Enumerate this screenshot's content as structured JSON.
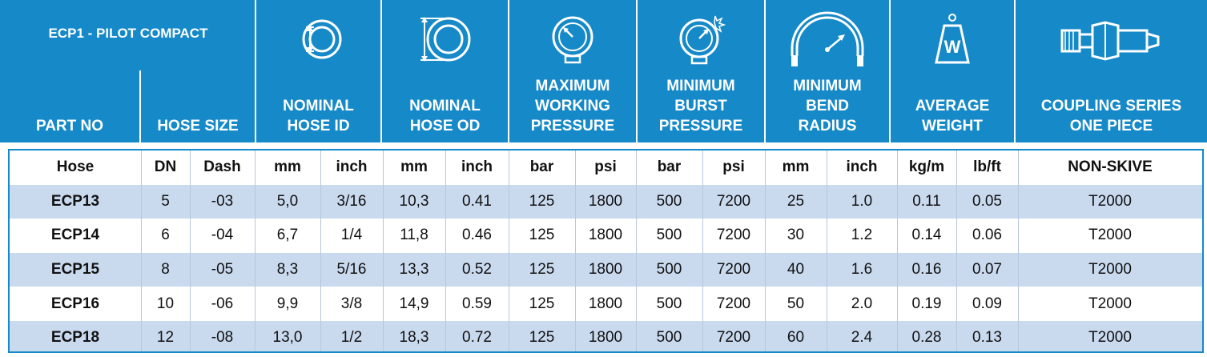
{
  "header": {
    "product_title": "ECP1 - PILOT COMPACT",
    "part_no": "PART NO",
    "hose_size": "HOSE SIZE",
    "nominal_hose_id": [
      "NOMINAL",
      "HOSE ID"
    ],
    "nominal_hose_od": [
      "NOMINAL",
      "HOSE OD"
    ],
    "max_working_pressure": [
      "MAXIMUM",
      "WORKING",
      "PRESSURE"
    ],
    "min_burst_pressure": [
      "MINIMUM",
      "BURST",
      "PRESSURE"
    ],
    "min_bend_radius": [
      "MINIMUM",
      "BEND",
      "RADIUS"
    ],
    "average_weight": [
      "AVERAGE",
      "WEIGHT"
    ],
    "coupling_series": [
      "COUPLING SERIES",
      "ONE PIECE"
    ],
    "weight_icon_letter": "W"
  },
  "icons": [
    "hose-id-icon",
    "hose-od-icon",
    "pressure-gauge-icon",
    "burst-gauge-icon",
    "bend-radius-icon",
    "weight-icon",
    "coupling-icon"
  ],
  "colors": {
    "header_bg": "#1689c8",
    "alt_row": "#c9d9ee"
  },
  "table": {
    "units": [
      "Hose",
      "DN",
      "Dash",
      "mm",
      "inch",
      "mm",
      "inch",
      "bar",
      "psi",
      "bar",
      "psi",
      "mm",
      "inch",
      "kg/m",
      "lb/ft",
      "NON-SKIVE"
    ],
    "rows": [
      [
        "ECP13",
        "5",
        "-03",
        "5,0",
        "3/16",
        "10,3",
        "0.41",
        "125",
        "1800",
        "500",
        "7200",
        "25",
        "1.0",
        "0.11",
        "0.05",
        "T2000"
      ],
      [
        "ECP14",
        "6",
        "-04",
        "6,7",
        "1/4",
        "11,8",
        "0.46",
        "125",
        "1800",
        "500",
        "7200",
        "30",
        "1.2",
        "0.14",
        "0.06",
        "T2000"
      ],
      [
        "ECP15",
        "8",
        "-05",
        "8,3",
        "5/16",
        "13,3",
        "0.52",
        "125",
        "1800",
        "500",
        "7200",
        "40",
        "1.6",
        "0.16",
        "0.07",
        "T2000"
      ],
      [
        "ECP16",
        "10",
        "-06",
        "9,9",
        "3/8",
        "14,9",
        "0.59",
        "125",
        "1800",
        "500",
        "7200",
        "50",
        "2.0",
        "0.19",
        "0.09",
        "T2000"
      ],
      [
        "ECP18",
        "12",
        "-08",
        "13,0",
        "1/2",
        "18,3",
        "0.72",
        "125",
        "1800",
        "500",
        "7200",
        "60",
        "2.4",
        "0.28",
        "0.13",
        "T2000"
      ]
    ]
  }
}
